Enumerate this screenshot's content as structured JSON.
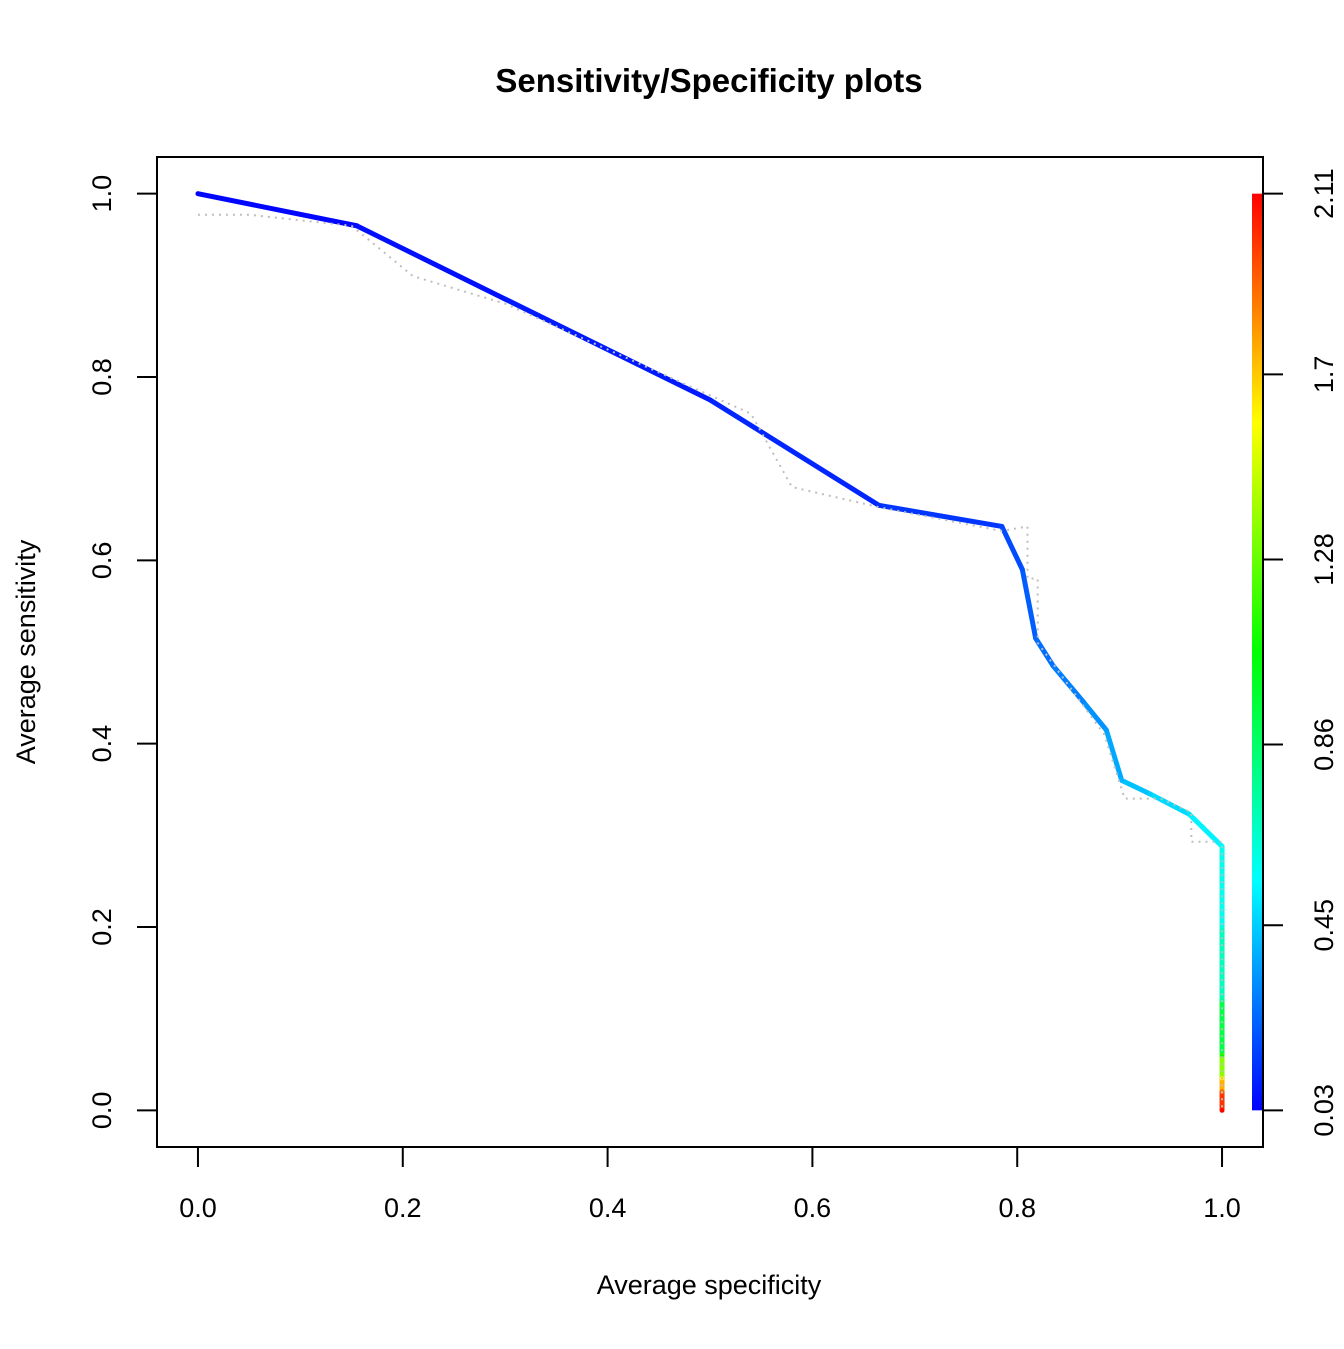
{
  "chart_data": {
    "type": "line",
    "title": "Sensitivity/Specificity plots",
    "xlabel": "Average specificity",
    "ylabel": "Average sensitivity",
    "xlim": [
      -0.04,
      1.04
    ],
    "ylim": [
      -0.04,
      1.04
    ],
    "x_ticks": [
      "0.0",
      "0.2",
      "0.4",
      "0.6",
      "0.8",
      "1.0"
    ],
    "y_ticks": [
      "0.0",
      "0.2",
      "0.4",
      "0.6",
      "0.8",
      "1.0"
    ],
    "grid": false,
    "legend": "none",
    "series": [
      {
        "type": "line",
        "style": "solid",
        "colored_by": "cutoff",
        "points": [
          {
            "x": 0.0,
            "y": 1.0,
            "cutoff": 0.03
          },
          {
            "x": 0.155,
            "y": 0.965,
            "cutoff": 0.05
          },
          {
            "x": 0.3,
            "y": 0.885,
            "cutoff": 0.07
          },
          {
            "x": 0.5,
            "y": 0.775,
            "cutoff": 0.09
          },
          {
            "x": 0.665,
            "y": 0.66,
            "cutoff": 0.12
          },
          {
            "x": 0.785,
            "y": 0.637,
            "cutoff": 0.16
          },
          {
            "x": 0.805,
            "y": 0.59,
            "cutoff": 0.2
          },
          {
            "x": 0.818,
            "y": 0.515,
            "cutoff": 0.24
          },
          {
            "x": 0.835,
            "y": 0.485,
            "cutoff": 0.27
          },
          {
            "x": 0.865,
            "y": 0.445,
            "cutoff": 0.31
          },
          {
            "x": 0.887,
            "y": 0.415,
            "cutoff": 0.35
          },
          {
            "x": 0.902,
            "y": 0.36,
            "cutoff": 0.4
          },
          {
            "x": 0.93,
            "y": 0.345,
            "cutoff": 0.45
          },
          {
            "x": 0.968,
            "y": 0.323,
            "cutoff": 0.5
          },
          {
            "x": 1.0,
            "y": 0.288,
            "cutoff": 0.55
          },
          {
            "x": 1.0,
            "y": 0.2,
            "cutoff": 0.62
          },
          {
            "x": 1.0,
            "y": 0.12,
            "cutoff": 0.75
          },
          {
            "x": 1.0,
            "y": 0.06,
            "cutoff": 1.1
          },
          {
            "x": 1.0,
            "y": 0.035,
            "cutoff": 1.6
          },
          {
            "x": 1.0,
            "y": 0.02,
            "cutoff": 1.9
          },
          {
            "x": 1.0,
            "y": 0.0,
            "cutoff": 2.11
          }
        ]
      },
      {
        "type": "line",
        "style": "dotted",
        "color": "#bebebe",
        "points": [
          {
            "x": 0.0,
            "y": 0.977
          },
          {
            "x": 0.05,
            "y": 0.977
          },
          {
            "x": 0.15,
            "y": 0.965
          },
          {
            "x": 0.21,
            "y": 0.91
          },
          {
            "x": 0.3,
            "y": 0.88
          },
          {
            "x": 0.54,
            "y": 0.76
          },
          {
            "x": 0.58,
            "y": 0.68
          },
          {
            "x": 0.665,
            "y": 0.658
          },
          {
            "x": 0.785,
            "y": 0.632
          },
          {
            "x": 0.81,
            "y": 0.637
          },
          {
            "x": 0.81,
            "y": 0.58
          },
          {
            "x": 0.82,
            "y": 0.58
          },
          {
            "x": 0.82,
            "y": 0.51
          },
          {
            "x": 0.885,
            "y": 0.41
          },
          {
            "x": 0.905,
            "y": 0.34
          },
          {
            "x": 0.94,
            "y": 0.34
          },
          {
            "x": 0.97,
            "y": 0.325
          },
          {
            "x": 0.97,
            "y": 0.293
          },
          {
            "x": 1.0,
            "y": 0.293
          },
          {
            "x": 1.0,
            "y": 0.0
          }
        ]
      }
    ],
    "colorbar": {
      "position": "right",
      "range": [
        0.03,
        2.11
      ],
      "ticks": [
        "0.03",
        "0.45",
        "0.86",
        "1.28",
        "1.7",
        "2.11"
      ],
      "tick_values": [
        0.03,
        0.45,
        0.86,
        1.28,
        1.7,
        2.11
      ],
      "colors": [
        "#0000ff",
        "#00ffff",
        "#00ff00",
        "#ffff00",
        "#ff0000"
      ]
    }
  }
}
